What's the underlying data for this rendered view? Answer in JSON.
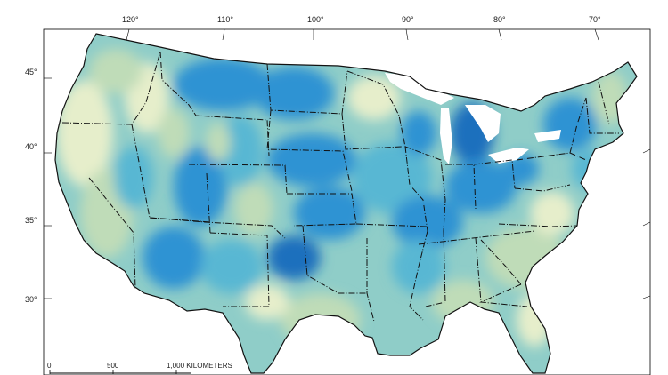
{
  "map": {
    "longitude_labels": [
      "120°",
      "110°",
      "100°",
      "90°",
      "80°",
      "70°"
    ],
    "latitude_labels": [
      "45°",
      "40°",
      "35°",
      "30°"
    ],
    "scale_bar": {
      "labels": [
        "0",
        "500",
        "1,000 KILOMETERS"
      ]
    },
    "colors": {
      "light": "#e6eecb",
      "pale_green": "#bfdcb8",
      "aqua": "#8fcdc8",
      "teal": "#58b7d3",
      "blue": "#2f93d3",
      "dark_blue": "#1a6fbd",
      "boundary": "#111111",
      "water": "#ffffff"
    }
  }
}
